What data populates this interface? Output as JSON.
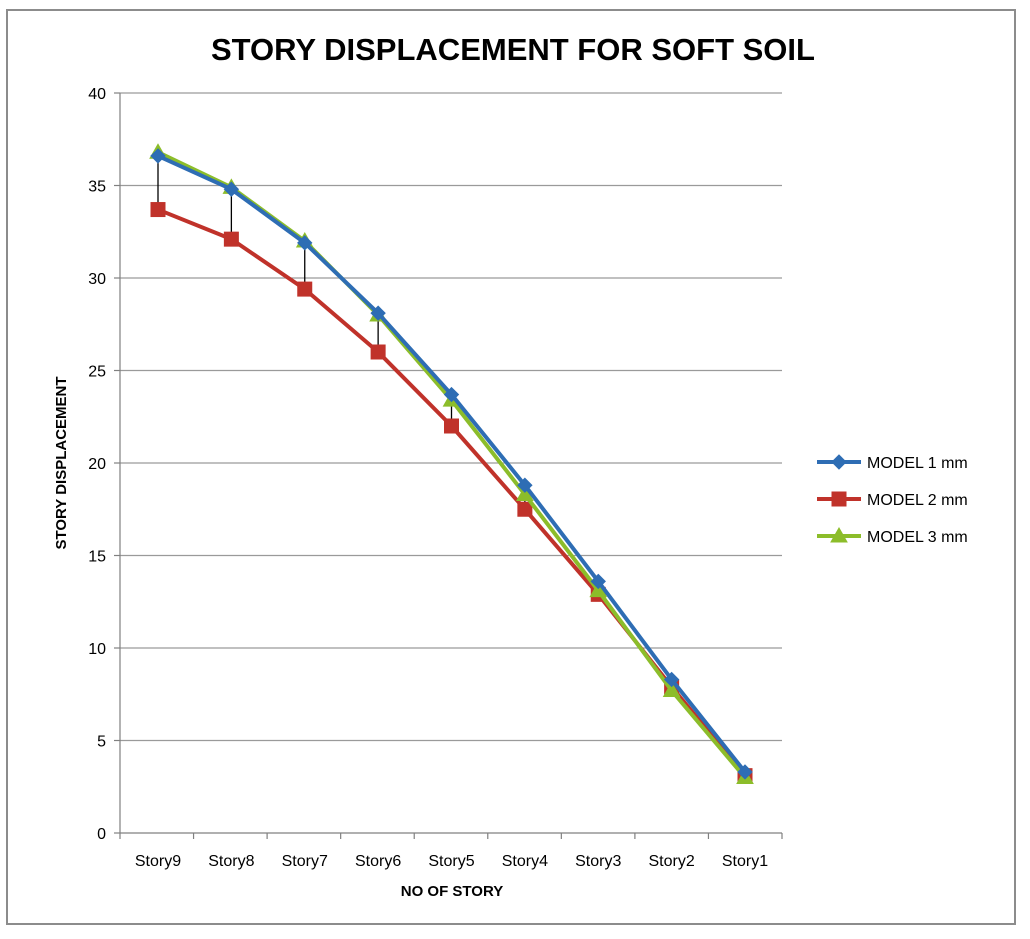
{
  "chart_data": {
    "type": "line",
    "title": "STORY DISPLACEMENT FOR SOFT SOIL",
    "xlabel": "NO OF STORY",
    "ylabel": "STORY DISPLACEMENT",
    "categories": [
      "Story9",
      "Story8",
      "Story7",
      "Story6",
      "Story5",
      "Story4",
      "Story3",
      "Story2",
      "Story1"
    ],
    "ylim": [
      0,
      40
    ],
    "yticks": [
      0,
      5,
      10,
      15,
      20,
      25,
      30,
      35,
      40
    ],
    "grid": true,
    "legend_position": "right",
    "error_bars": true,
    "series": [
      {
        "name": "MODEL 1 mm",
        "color": "#2e6db4",
        "marker": "diamond",
        "values": [
          36.6,
          34.8,
          31.9,
          28.1,
          23.7,
          18.8,
          13.6,
          8.3,
          3.3
        ]
      },
      {
        "name": "MODEL 2 mm",
        "color": "#c0322a",
        "marker": "square",
        "values": [
          33.7,
          32.1,
          29.4,
          26.0,
          22.0,
          17.5,
          12.9,
          7.9,
          3.1
        ]
      },
      {
        "name": "MODEL 3 mm",
        "color": "#8cbd2a",
        "marker": "triangle",
        "values": [
          36.8,
          34.9,
          32.0,
          28.0,
          23.4,
          18.3,
          13.1,
          7.7,
          3.0
        ]
      }
    ]
  }
}
